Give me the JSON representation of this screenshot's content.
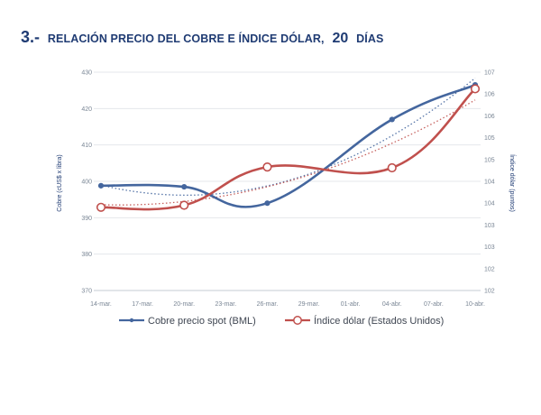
{
  "header": {
    "number": "3.-",
    "caption": "RELACIÓN PRECIO DEL COBRE E ÍNDICE DÓLAR,",
    "days_number": "20",
    "days_word": "DÍAS"
  },
  "chart_data": {
    "type": "line",
    "title": "",
    "categories": [
      "14-mar.",
      "17-mar.",
      "20-mar.",
      "23-mar.",
      "26-mar.",
      "29-mar.",
      "01-abr.",
      "04-abr.",
      "07-abr.",
      "10-abr."
    ],
    "x": [
      "14-mar.",
      "20-mar.",
      "26-mar.",
      "04-abr.",
      "10-abr."
    ],
    "ylabel": "Cobre (cUS$ x libra)",
    "ylim": [
      370,
      430
    ],
    "yticks": [
      "370",
      "380",
      "390",
      "400",
      "410",
      "420",
      "430"
    ],
    "y2label": "Índice dólar (puntos)",
    "y2ticks": [
      "102",
      "102",
      "103",
      "103",
      "104",
      "104",
      "105",
      "105",
      "106",
      "106",
      "107"
    ],
    "series": [
      {
        "name": "Cobre precio spot (BML)",
        "axis": "left",
        "values": [
          398.8,
          398.5,
          394.0,
          417.0,
          426.5
        ],
        "color": "#44669e",
        "marker": "filled-dot",
        "trendline": "dotted"
      },
      {
        "name": "Índice dólar (Estados Unidos)",
        "axis": "right",
        "values": [
          103.75,
          103.8,
          104.72,
          104.7,
          106.6
        ],
        "color": "#c0504d",
        "marker": "open-circle",
        "trendline": "dotted"
      }
    ],
    "legend_position": "bottom",
    "grid": "horizontal"
  }
}
